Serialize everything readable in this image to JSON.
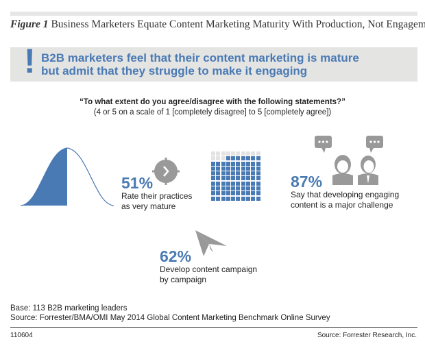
{
  "figure": {
    "label": "Figure 1",
    "title": "Business Marketers Equate Content Marketing Maturity With Production, Not Engagement"
  },
  "banner": {
    "mark": "!",
    "line1": "B2B marketers feel that their content marketing is mature",
    "line2": "but admit that they struggle to make it engaging"
  },
  "question": {
    "text": "“To what extent do you agree/disagree with the following statements?”",
    "scale": "(4 or 5 on a scale of 1 [completely disagree] to 5 [completely agree])"
  },
  "stats": [
    {
      "percent": "51%",
      "line1": "Rate their practices",
      "line2": "as very mature",
      "icon": "clock-icon"
    },
    {
      "percent": "87%",
      "line1": "Say that developing engaging",
      "line2": "content is a major challenge",
      "icon": "people-chat-icon",
      "grid_filled": 87,
      "grid_total": 100
    },
    {
      "percent": "62%",
      "line1": "Develop content campaign",
      "line2": "by campaign",
      "icon": "paper-plane-icon"
    }
  ],
  "base": "Base: 113 B2B marketing leaders",
  "source": "Source: Forrester/BMA/OMI May 2014 Global Content Marketing Benchmark Online Survey",
  "footer": {
    "code": "110604",
    "source": "Source: Forrester Research, Inc."
  },
  "colors": {
    "accent": "#4a7ab4",
    "gray_icon": "#999999",
    "banner_bg": "#e4e4e3",
    "grid_empty": "#e3e3e3"
  }
}
